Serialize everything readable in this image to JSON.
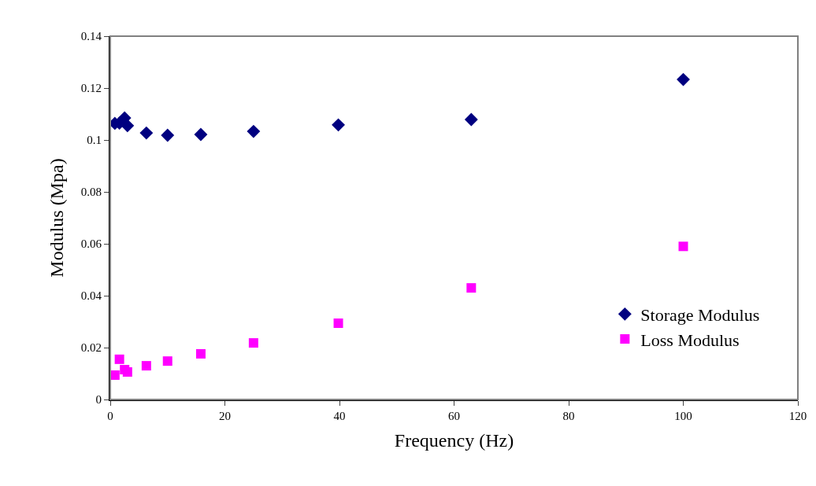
{
  "chart_data": {
    "type": "scatter",
    "xlabel": "Frequency (Hz)",
    "ylabel": "Modulus (Mpa)",
    "x": [
      0.8,
      1.6,
      2.5,
      3.0,
      6.3,
      10,
      15.8,
      25,
      39.8,
      63,
      100
    ],
    "series": [
      {
        "name": "Storage Modulus",
        "color": "#000080",
        "marker": "diamond",
        "values": [
          0.1064,
          0.1065,
          0.1085,
          0.1055,
          0.1027,
          0.1018,
          0.1021,
          0.1033,
          0.1058,
          0.1079,
          0.1233
        ]
      },
      {
        "name": "Loss Modulus",
        "color": "#ff00ff",
        "marker": "square",
        "values": [
          0.0094,
          0.0155,
          0.0115,
          0.0106,
          0.013,
          0.0148,
          0.0176,
          0.0218,
          0.0294,
          0.043,
          0.059
        ]
      }
    ],
    "xlim": [
      0,
      120
    ],
    "xticks": [
      0,
      20,
      40,
      60,
      80,
      100,
      120
    ],
    "ylim": [
      0,
      0.14
    ],
    "yticks": [
      0,
      {
        "value": 0.02,
        "label": "0.02"
      },
      {
        "value": 0.04,
        "label": "0.04"
      },
      {
        "value": 0.06,
        "label": "0.06"
      },
      {
        "value": 0.08,
        "label": "0.08"
      },
      {
        "value": 0.1,
        "label": "0.1"
      },
      {
        "value": 0.12,
        "label": "0.12"
      },
      {
        "value": 0.14,
        "label": "0.14"
      }
    ],
    "legend": "bottom right"
  }
}
